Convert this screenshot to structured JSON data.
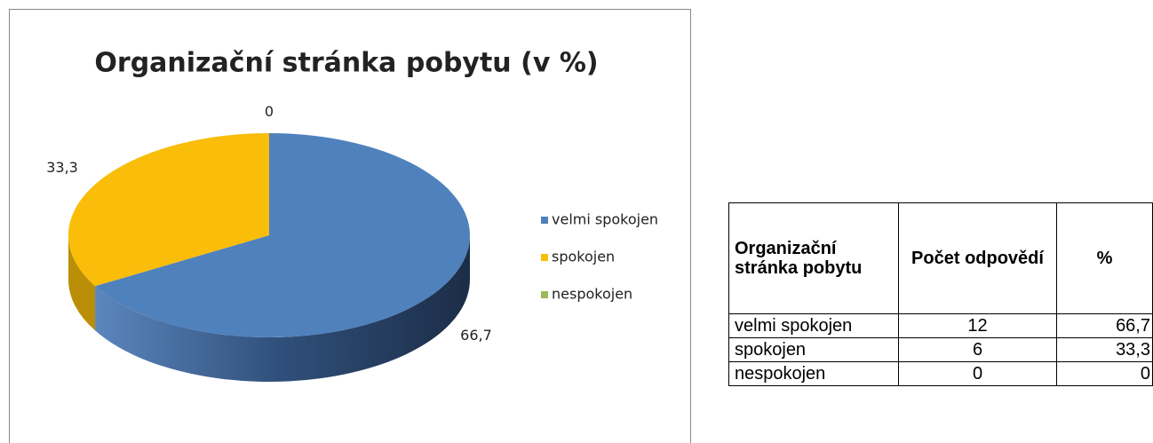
{
  "chart_data": {
    "type": "pie",
    "title": "Organizační stránka pobytu (v %)",
    "categories": [
      "velmi spokojen",
      "spokojen",
      "nespokojen"
    ],
    "values": [
      66.7,
      33.3,
      0
    ],
    "value_labels": [
      "66,7",
      "33,3",
      "0"
    ],
    "colors": [
      "#4f81bd",
      "#f9bd0a",
      "#9bbb59"
    ],
    "legend": "right"
  },
  "table": {
    "header": [
      "Organizační stránka pobytu",
      "Počet odpovědí",
      "%"
    ],
    "rows": [
      [
        "velmi spokojen",
        "12",
        "66,7"
      ],
      [
        "spokojen",
        "6",
        "33,3"
      ],
      [
        "nespokojen",
        "0",
        "0"
      ]
    ]
  }
}
